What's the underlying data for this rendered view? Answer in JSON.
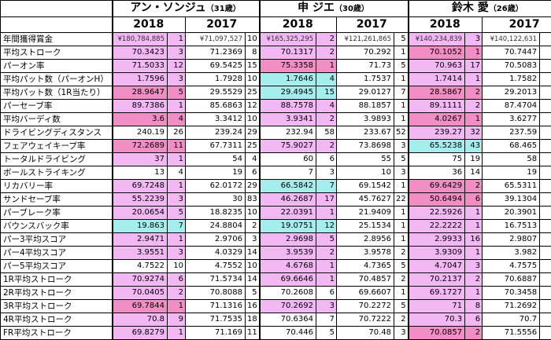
{
  "players": [
    {
      "name": "アン・ソンジュ",
      "age": "（31歳）"
    },
    {
      "name": "申 ジエ",
      "age": "（30歳）"
    },
    {
      "name": "鈴木 愛",
      "age": "（26歳）"
    }
  ],
  "years": [
    "2018",
    "2017"
  ],
  "colors": {
    "pink": "#f2b8f4",
    "red": "#f18ec3",
    "cyan": "#a6eeee"
  },
  "rows": [
    {
      "label": "年間獲得賞金",
      "money": true,
      "cells": [
        {
          "v": "¥180,784,885",
          "r": "1",
          "c": "pk"
        },
        {
          "v": "¥71,097,527",
          "r": "10",
          "c": ""
        },
        {
          "v": "¥165,325,295",
          "r": "2",
          "c": "pk"
        },
        {
          "v": "¥121,261,865",
          "r": "5",
          "c": ""
        },
        {
          "v": "¥140,234,839",
          "r": "3",
          "c": "pk"
        },
        {
          "v": "¥140,122,631",
          "r": "1",
          "c": ""
        }
      ]
    },
    {
      "label": "平均ストローク",
      "cells": [
        {
          "v": "70.3423",
          "r": "3",
          "c": "pk"
        },
        {
          "v": "71.2369",
          "r": "8",
          "c": ""
        },
        {
          "v": "70.1317",
          "r": "2",
          "c": "pk"
        },
        {
          "v": "70.292",
          "r": "1",
          "c": ""
        },
        {
          "v": "70.1052",
          "r": "1",
          "c": "rd"
        },
        {
          "v": "70.7447",
          "r": "4",
          "c": ""
        }
      ]
    },
    {
      "label": "パーオン率",
      "cells": [
        {
          "v": "71.5033",
          "r": "12",
          "c": "pk"
        },
        {
          "v": "69.5425",
          "r": "15",
          "c": ""
        },
        {
          "v": "75.3358",
          "r": "1",
          "c": "rd"
        },
        {
          "v": "71.73",
          "r": "5",
          "c": ""
        },
        {
          "v": "70.963",
          "r": "17",
          "c": "pk"
        },
        {
          "v": "70.5083",
          "r": "11",
          "c": ""
        }
      ]
    },
    {
      "label": "平均パット数（パーオンH）",
      "cells": [
        {
          "v": "1.7596",
          "r": "3",
          "c": "pk"
        },
        {
          "v": "1.7928",
          "r": "10",
          "c": ""
        },
        {
          "v": "1.7646",
          "r": "4",
          "c": "cy"
        },
        {
          "v": "1.7537",
          "r": "1",
          "c": ""
        },
        {
          "v": "1.7414",
          "r": "1",
          "c": "pk"
        },
        {
          "v": "1.7582",
          "r": "2",
          "c": ""
        }
      ]
    },
    {
      "label": "平均パット数（1R当たり）",
      "cells": [
        {
          "v": "28.9647",
          "r": "5",
          "c": "rd"
        },
        {
          "v": "29.5529",
          "r": "25",
          "c": ""
        },
        {
          "v": "29.4945",
          "r": "15",
          "c": "cy"
        },
        {
          "v": "29.0127",
          "r": "7",
          "c": ""
        },
        {
          "v": "28.5867",
          "r": "2",
          "c": "rd"
        },
        {
          "v": "29.2013",
          "r": "8",
          "c": ""
        }
      ]
    },
    {
      "label": "パーセーブ率",
      "cells": [
        {
          "v": "89.7386",
          "r": "1",
          "c": "pk"
        },
        {
          "v": "85.6863",
          "r": "12",
          "c": ""
        },
        {
          "v": "88.7578",
          "r": "4",
          "c": "pk"
        },
        {
          "v": "88.1857",
          "r": "1",
          "c": ""
        },
        {
          "v": "89.1111",
          "r": "2",
          "c": "pk"
        },
        {
          "v": "87.4704",
          "r": "4",
          "c": ""
        }
      ]
    },
    {
      "label": "平均バーディ数",
      "cells": [
        {
          "v": "3.6",
          "r": "4",
          "c": "rd"
        },
        {
          "v": "3.3412",
          "r": "10",
          "c": ""
        },
        {
          "v": "3.9341",
          "r": "2",
          "c": "pk"
        },
        {
          "v": "3.9893",
          "r": "1",
          "c": ""
        },
        {
          "v": "4.0267",
          "r": "1",
          "c": "rd"
        },
        {
          "v": "3.6277",
          "r": "4",
          "c": ""
        }
      ]
    },
    {
      "label": "ドライビングディスタンス",
      "cells": [
        {
          "v": "240.19",
          "r": "26",
          "c": ""
        },
        {
          "v": "239.24",
          "r": "29",
          "c": ""
        },
        {
          "v": "232.94",
          "r": "58",
          "c": ""
        },
        {
          "v": "233.67",
          "r": "52",
          "c": ""
        },
        {
          "v": "239.27",
          "r": "32",
          "c": "pk"
        },
        {
          "v": "237.59",
          "r": "37",
          "c": ""
        }
      ]
    },
    {
      "label": "フェアウェイキープ率",
      "cells": [
        {
          "v": "72.2689",
          "r": "11",
          "c": "rd"
        },
        {
          "v": "67.7311",
          "r": "25",
          "c": ""
        },
        {
          "v": "75.9027",
          "r": "2",
          "c": "pk"
        },
        {
          "v": "73.8698",
          "r": "3",
          "c": ""
        },
        {
          "v": "65.5238",
          "r": "43",
          "c": "cy"
        },
        {
          "v": "68.465",
          "r": "21",
          "c": ""
        }
      ]
    },
    {
      "label": "トータルドライビング",
      "cells": [
        {
          "v": "37",
          "r": "1",
          "c": "pk"
        },
        {
          "v": "54",
          "r": "4",
          "c": ""
        },
        {
          "v": "60",
          "r": "6",
          "c": ""
        },
        {
          "v": "55",
          "r": "5",
          "c": ""
        },
        {
          "v": "75",
          "r": "19",
          "c": ""
        },
        {
          "v": "58",
          "r": "8",
          "c": ""
        }
      ]
    },
    {
      "label": "ボールストライキング",
      "cells": [
        {
          "v": "13",
          "r": "4",
          "c": ""
        },
        {
          "v": "19",
          "r": "6",
          "c": ""
        },
        {
          "v": "7",
          "r": "3",
          "c": ""
        },
        {
          "v": "10",
          "r": "3",
          "c": ""
        },
        {
          "v": "36",
          "r": "14",
          "c": ""
        },
        {
          "v": "19",
          "r": "6",
          "c": ""
        }
      ]
    },
    {
      "label": "リカバリー率",
      "cells": [
        {
          "v": "69.7248",
          "r": "1",
          "c": "pk"
        },
        {
          "v": "62.0172",
          "r": "29",
          "c": ""
        },
        {
          "v": "66.5842",
          "r": "7",
          "c": "cy"
        },
        {
          "v": "69.1542",
          "r": "1",
          "c": ""
        },
        {
          "v": "69.6429",
          "r": "2",
          "c": "rd"
        },
        {
          "v": "65.5311",
          "r": "5",
          "c": ""
        }
      ]
    },
    {
      "label": "サンドセーブ率",
      "cells": [
        {
          "v": "55.2239",
          "r": "3",
          "c": "pk"
        },
        {
          "v": "30",
          "r": "83",
          "c": ""
        },
        {
          "v": "46.2687",
          "r": "17",
          "c": "pk"
        },
        {
          "v": "45.7627",
          "r": "22",
          "c": ""
        },
        {
          "v": "50.6494",
          "r": "6",
          "c": "rd"
        },
        {
          "v": "39.1304",
          "r": "51",
          "c": ""
        }
      ]
    },
    {
      "label": "パーブレーク率",
      "cells": [
        {
          "v": "20.0654",
          "r": "5",
          "c": "pk"
        },
        {
          "v": "18.8235",
          "r": "10",
          "c": ""
        },
        {
          "v": "22.0391",
          "r": "1",
          "c": "pk"
        },
        {
          "v": "21.9409",
          "r": "1",
          "c": ""
        },
        {
          "v": "22.5926",
          "r": "1",
          "c": "pk"
        },
        {
          "v": "20.3901",
          "r": "4",
          "c": ""
        }
      ]
    },
    {
      "label": "バウンスバック率",
      "cells": [
        {
          "v": "19.863",
          "r": "7",
          "c": "cy"
        },
        {
          "v": "24.8804",
          "r": "2",
          "c": ""
        },
        {
          "v": "19.0751",
          "r": "12",
          "c": "cy"
        },
        {
          "v": "25.1534",
          "r": "1",
          "c": ""
        },
        {
          "v": "22.2222",
          "r": "1",
          "c": "pk"
        },
        {
          "v": "16.7513",
          "r": "30",
          "c": ""
        }
      ]
    },
    {
      "label": "パー3平均スコア",
      "cells": [
        {
          "v": "2.9471",
          "r": "1",
          "c": "pk"
        },
        {
          "v": "2.9706",
          "r": "3",
          "c": ""
        },
        {
          "v": "2.9698",
          "r": "5",
          "c": "pk"
        },
        {
          "v": "2.8956",
          "r": "1",
          "c": ""
        },
        {
          "v": "2.9933",
          "r": "16",
          "c": "pk"
        },
        {
          "v": "2.9807",
          "r": "4",
          "c": ""
        }
      ]
    },
    {
      "label": "パー4平均スコア",
      "cells": [
        {
          "v": "3.9551",
          "r": "3",
          "c": "pk"
        },
        {
          "v": "4.0329",
          "r": "14",
          "c": ""
        },
        {
          "v": "3.9539",
          "r": "2",
          "c": "pk"
        },
        {
          "v": "3.9578",
          "r": "2",
          "c": ""
        },
        {
          "v": "3.9309",
          "r": "1",
          "c": "pk"
        },
        {
          "v": "3.982",
          "r": "4",
          "c": ""
        }
      ]
    },
    {
      "label": "パー5平均スコア",
      "cells": [
        {
          "v": "4.7522",
          "r": "10",
          "c": ""
        },
        {
          "v": "4.7552",
          "r": "10",
          "c": ""
        },
        {
          "v": "4.6768",
          "r": "1",
          "c": "pk"
        },
        {
          "v": "4.7365",
          "r": "5",
          "c": ""
        },
        {
          "v": "4.7047",
          "r": "3",
          "c": "pk"
        },
        {
          "v": "4.7575",
          "r": "8",
          "c": ""
        }
      ]
    },
    {
      "label": "1R平均ストローク",
      "cells": [
        {
          "v": "70.9274",
          "r": "6",
          "c": "pk"
        },
        {
          "v": "71.5734",
          "r": "14",
          "c": ""
        },
        {
          "v": "69.6646",
          "r": "1",
          "c": "pk"
        },
        {
          "v": "70.4857",
          "r": "2",
          "c": ""
        },
        {
          "v": "70.2137",
          "r": "2",
          "c": "pk"
        },
        {
          "v": "70.6887",
          "r": "4",
          "c": ""
        }
      ]
    },
    {
      "label": "2R平均ストローク",
      "cells": [
        {
          "v": "70.0405",
          "r": "2",
          "c": "pk"
        },
        {
          "v": "70.8088",
          "r": "5",
          "c": ""
        },
        {
          "v": "70.2608",
          "r": "6",
          "c": ""
        },
        {
          "v": "69.6607",
          "r": "1",
          "c": ""
        },
        {
          "v": "69.1727",
          "r": "1",
          "c": "pk"
        },
        {
          "v": "70.3458",
          "r": "3",
          "c": ""
        }
      ]
    },
    {
      "label": "3R平均ストローク",
      "cells": [
        {
          "v": "69.7844",
          "r": "1",
          "c": "rd"
        },
        {
          "v": "71.1316",
          "r": "16",
          "c": ""
        },
        {
          "v": "70.2692",
          "r": "3",
          "c": "pk"
        },
        {
          "v": "70.2272",
          "r": "5",
          "c": ""
        },
        {
          "v": "71",
          "r": "8",
          "c": "pk"
        },
        {
          "v": "71.2692",
          "r": "22",
          "c": ""
        }
      ]
    },
    {
      "label": "4R平均ストローク",
      "cells": [
        {
          "v": "70.8",
          "r": "9",
          "c": "pk"
        },
        {
          "v": "71.7535",
          "r": "18",
          "c": ""
        },
        {
          "v": "70.6364",
          "r": "7",
          "c": ""
        },
        {
          "v": "70.7222",
          "r": "2",
          "c": ""
        },
        {
          "v": "70.3",
          "r": "6",
          "c": "pk"
        },
        {
          "v": "70.7",
          "r": "3",
          "c": ""
        }
      ]
    },
    {
      "label": "FR平均ストローク",
      "cells": [
        {
          "v": "69.8279",
          "r": "1",
          "c": "pk"
        },
        {
          "v": "71.169",
          "r": "11",
          "c": ""
        },
        {
          "v": "70.446",
          "r": "5",
          "c": ""
        },
        {
          "v": "70.48",
          "r": "3",
          "c": ""
        },
        {
          "v": "70.0857",
          "r": "2",
          "c": "rd"
        },
        {
          "v": "71.5556",
          "r": "22",
          "c": ""
        }
      ]
    }
  ]
}
